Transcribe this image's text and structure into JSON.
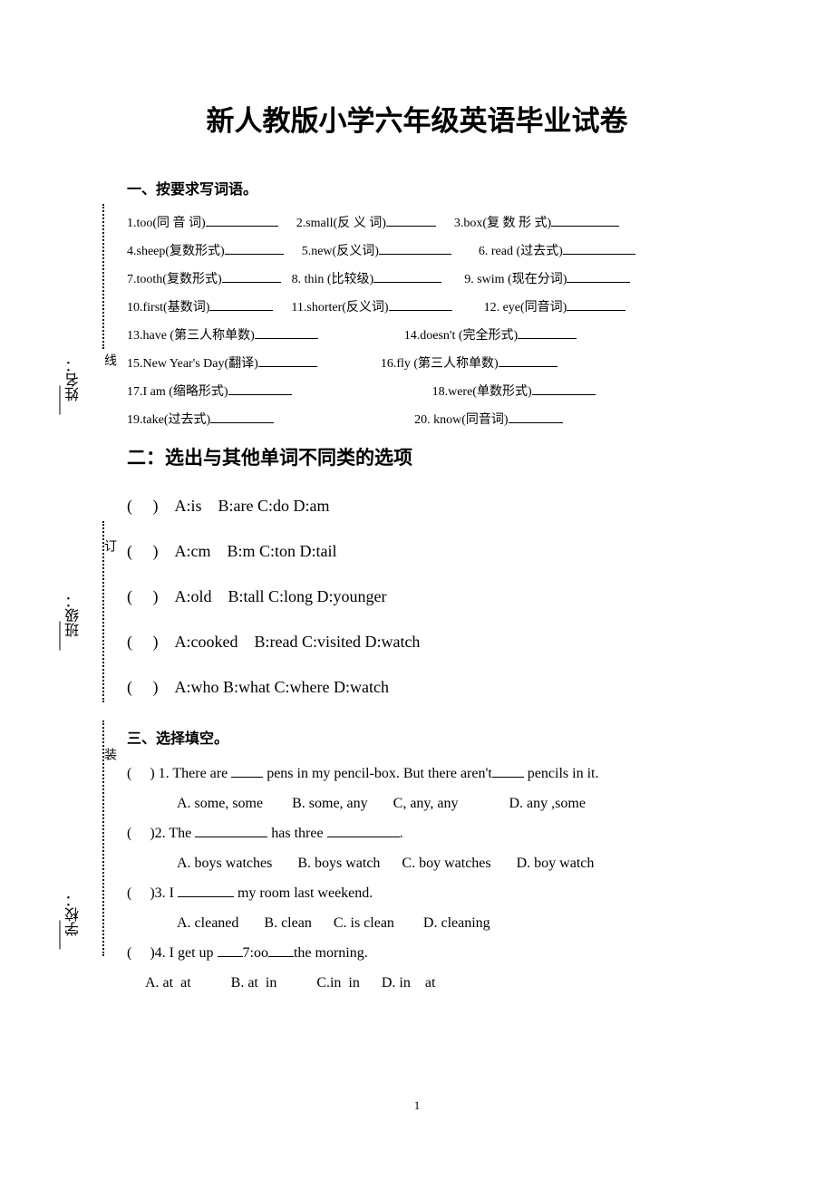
{
  "title": "新人教版小学六年级英语毕业试卷",
  "margin": {
    "school_label": "学校：",
    "class_label": "班级：",
    "name_label": "姓名：",
    "zhuang": "装",
    "ding": "订",
    "xian": "线"
  },
  "section1": {
    "header": "一、按要求写词语。",
    "items": [
      [
        {
          "n": "1",
          "w": "too",
          "h": "同 音 词",
          "bw": 80
        },
        {
          "n": "2",
          "w": "small",
          "h": "反 义 词",
          "bw": 55
        },
        {
          "n": "3",
          "w": "box",
          "h": "复 数 形 式",
          "bw": 75
        }
      ],
      [
        {
          "n": "4",
          "w": "sheep",
          "h": "复数形式",
          "bw": 65
        },
        {
          "n": "5",
          "w": "new",
          "h": "反义词",
          "bw": 80
        },
        {
          "n": "6",
          "w": " read ",
          "h": "过去式",
          "bw": 80
        }
      ],
      [
        {
          "n": "7",
          "w": "tooth",
          "h": "复数形式",
          "bw": 65
        },
        {
          "n": "8",
          "w": " thin ",
          "h": "比较级",
          "bw": 75
        },
        {
          "n": "9",
          "w": " swim ",
          "h": "现在分词",
          "bw": 70
        }
      ],
      [
        {
          "n": "10",
          "w": "first",
          "h": "基数词",
          "bw": 70
        },
        {
          "n": "11",
          "w": "shorter",
          "h": "反义词",
          "bw": 70
        },
        {
          "n": "12",
          "w": " eye",
          "h": "同音词",
          "bw": 65
        }
      ],
      [
        {
          "n": "13",
          "w": "have ",
          "h": "第三人称单数",
          "bw": 70
        },
        {
          "n": "14",
          "w": "doesn't ",
          "h": "完全形式",
          "bw": 65
        }
      ],
      [
        {
          "n": "15",
          "w": "New Year's Day",
          "h": "翻译",
          "bw": 65
        },
        {
          "n": "16",
          "w": "fly ",
          "h": "第三人称单数",
          "bw": 65
        }
      ],
      [
        {
          "n": "17",
          "w": "I am ",
          "h": "缩略形式",
          "bw": 70
        },
        {
          "n": "18",
          "w": "were",
          "h": "单数形式",
          "bw": 70
        }
      ],
      [
        {
          "n": "19",
          "w": "take",
          "h": "过去式",
          "bw": 70
        },
        {
          "n": "20",
          "w": " know",
          "h": "同音词",
          "bw": 60
        }
      ]
    ],
    "row_gaps": [
      [
        0,
        20,
        20
      ],
      [
        0,
        20,
        30
      ],
      [
        0,
        12,
        25
      ],
      [
        0,
        20,
        35
      ],
      [
        0,
        95
      ],
      [
        0,
        70
      ],
      [
        0,
        155
      ],
      [
        0,
        155
      ]
    ]
  },
  "section2": {
    "header": "二：选出与其他单词不同类的选项",
    "items": [
      {
        "opts": "A:is    B:are C:do D:am"
      },
      {
        "opts": "A:cm    B:m C:ton D:tail"
      },
      {
        "opts": "A:old    B:tall C:long D:younger"
      },
      {
        "opts": "A:cooked    B:read C:visited D:watch"
      },
      {
        "opts": "A:who B:what C:where D:watch"
      }
    ]
  },
  "section3": {
    "header": "三、选择填空。",
    "items": [
      {
        "n": "1",
        "stem_pre": "There are ",
        "blank1": 35,
        "stem_mid": " pens in my pencil-box. But there aren't",
        "blank2": 35,
        "stem_post": "     pencils in it.",
        "opts": "A. some, some        B. some, any       C, any, any              D. any ,some"
      },
      {
        "n": "2",
        "stem_pre": "The ",
        "blank1": 80,
        "stem_mid": " has three ",
        "blank2": 80,
        "stem_post": ".",
        "opts": "A. boys watches       B. boys watch      C. boy watches       D. boy watch"
      },
      {
        "n": "3",
        "stem_pre": "I ",
        "blank1": 62,
        "stem_mid": " my room last weekend.",
        "blank2": 0,
        "stem_post": "",
        "opts": "A. cleaned       B. clean      C. is clean        D. cleaning"
      },
      {
        "n": "4",
        "stem_pre": "I get up ",
        "blank1": 28,
        "stem_mid": "7:oo",
        "blank2": 28,
        "stem_post": "the morning.",
        "opts": "A. at  at           B. at  in           C.in  in      D. in    at",
        "opts_indent": 20
      }
    ]
  },
  "page_number": "1",
  "colors": {
    "text": "#000000",
    "background": "#ffffff"
  },
  "fonts": {
    "title_family": "KaiTi",
    "title_size_pt": 24,
    "header_family": "SimHei",
    "body_family": "SimSun / Times New Roman",
    "body_size_pt": 12
  }
}
